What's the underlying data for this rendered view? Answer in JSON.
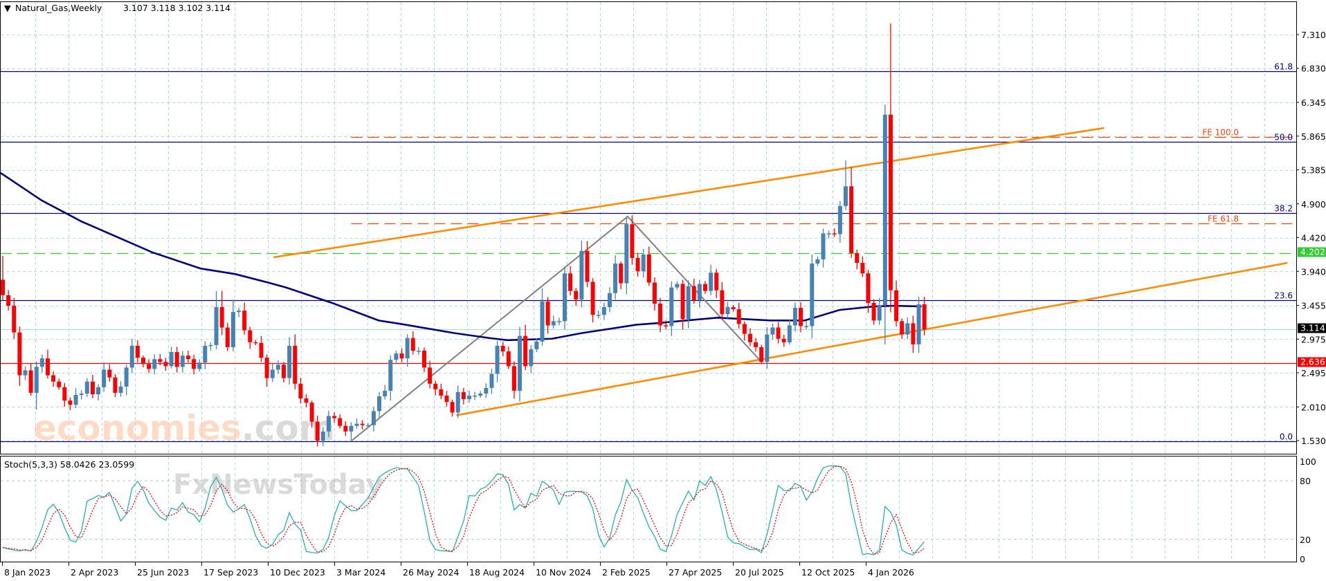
{
  "header": {
    "arrow": "▼",
    "symbol": "Natural_Gas,Weekly",
    "ohlc": "3.107 3.118 3.102 3.114"
  },
  "stoch_label": "Stoch(5,3,3) 58.0426 23.0599",
  "watermark": {
    "brand": "economies",
    "suffix": ".com",
    "sub": "FxNewsToday"
  },
  "colors": {
    "bull": "#4682b4",
    "bear": "#ff0000",
    "ma": "#000080",
    "fib": "#000080",
    "fe": "#ff4500",
    "trend": "#ff8c00",
    "zigzag": "#808080",
    "grid": "#b0dce0",
    "support_green": "#32cd32",
    "support_red": "#ff0000",
    "price_line": "#a8dce0",
    "stoch_main": "#20b2aa",
    "stoch_signal": "#ff0000"
  },
  "chart_data": {
    "type": "candlestick",
    "title": "Natural_Gas,Weekly",
    "y_ticks": [
      "7.310",
      "6.830",
      "6.345",
      "5.865",
      "5.385",
      "4.900",
      "4.420",
      "3.940",
      "3.455",
      "2.975",
      "2.495",
      "2.010",
      "1.530"
    ],
    "ylim": [
      1.53,
      7.31
    ],
    "x_labels": [
      "8 Jan 2023",
      "2 Apr 2023",
      "25 Jun 2023",
      "17 Sep 2023",
      "10 Dec 2023",
      "3 Mar 2024",
      "26 May 2024",
      "18 Aug 2024",
      "10 Nov 2024",
      "2 Feb 2025",
      "27 Apr 2025",
      "20 Jul 2025",
      "12 Oct 2025",
      "4 Jan 2026"
    ],
    "x_label_step_weeks": 12,
    "candles": {
      "first_open": 3.82,
      "close": [
        3.6,
        3.45,
        3.07,
        2.46,
        2.53,
        2.21,
        2.58,
        2.7,
        2.46,
        2.37,
        2.29,
        2.1,
        2.04,
        2.18,
        2.2,
        2.37,
        2.19,
        2.29,
        2.54,
        2.43,
        2.21,
        2.3,
        2.57,
        2.88,
        2.71,
        2.62,
        2.55,
        2.69,
        2.65,
        2.59,
        2.79,
        2.58,
        2.74,
        2.69,
        2.55,
        2.64,
        2.88,
        2.89,
        3.43,
        3.14,
        2.86,
        3.36,
        3.38,
        3.1,
        2.93,
        2.92,
        2.71,
        2.42,
        2.54,
        2.61,
        2.42,
        2.88,
        2.34,
        2.13,
        2.07,
        1.8,
        1.53,
        1.66,
        1.88,
        1.85,
        1.74,
        1.66,
        1.74,
        1.77,
        1.75,
        1.75,
        1.95,
        2.16,
        2.24,
        2.68,
        2.77,
        2.7,
        2.99,
        2.81,
        2.81,
        2.57,
        2.34,
        2.26,
        2.17,
        2.08,
        1.93,
        2.22,
        2.12,
        2.17,
        2.17,
        2.2,
        2.28,
        2.48,
        2.88,
        2.8,
        2.59,
        2.24,
        3.02,
        2.59,
        2.83,
        2.94,
        3.51,
        3.17,
        3.23,
        3.23,
        3.91,
        3.66,
        3.54,
        4.23,
        3.79,
        3.32,
        3.32,
        3.43,
        3.63,
        4.05,
        3.77,
        4.61,
        4.13,
        3.94,
        4.18,
        3.78,
        3.48,
        3.17,
        3.16,
        3.71,
        3.76,
        3.26,
        3.73,
        3.53,
        3.76,
        3.66,
        3.92,
        3.67,
        3.33,
        3.43,
        3.4,
        3.19,
        3.05,
        2.93,
        2.86,
        2.65,
        3.04,
        3.14,
        2.98,
        2.93,
        3.17,
        3.42,
        3.16,
        3.16,
        4.05,
        4.11,
        4.48,
        4.48,
        4.47,
        4.87,
        5.15,
        4.2,
        4.06,
        3.91,
        3.49,
        3.24,
        3.46,
        6.17,
        3.67,
        3.23,
        3.04,
        3.2,
        2.9,
        3.47,
        3.114
      ],
      "high_override": {
        "0": 4.16,
        "38": 3.66,
        "39": 3.66,
        "111": 4.72,
        "150": 5.52,
        "157": 6.31,
        "158": 7.47
      },
      "low_override": {
        "6": 1.97,
        "62": 1.53,
        "162": 2.78,
        "135": 2.63
      }
    },
    "moving_average": [
      [
        -0.5,
        5.34
      ],
      [
        6.9,
        4.95
      ],
      [
        14,
        4.65
      ],
      [
        26.6,
        4.21
      ],
      [
        35.2,
        3.98
      ],
      [
        41.4,
        3.9
      ],
      [
        47.2,
        3.78
      ],
      [
        50.4,
        3.71
      ],
      [
        58.6,
        3.49
      ],
      [
        66.9,
        3.24
      ],
      [
        70.9,
        3.19
      ],
      [
        80.4,
        3.06
      ],
      [
        86.6,
        2.99
      ],
      [
        89.8,
        2.96
      ],
      [
        97.7,
        2.98
      ],
      [
        103,
        3.06
      ],
      [
        112.8,
        3.18
      ],
      [
        116.1,
        3.2
      ],
      [
        127.2,
        3.28
      ],
      [
        136.6,
        3.24
      ],
      [
        142.7,
        3.24
      ],
      [
        148.9,
        3.39
      ],
      [
        155,
        3.44
      ],
      [
        158.7,
        3.45
      ],
      [
        163.5,
        3.44
      ]
    ],
    "fibonacci": [
      {
        "label": "61.8",
        "price": 6.79
      },
      {
        "label": "50.0",
        "price": 5.78
      },
      {
        "label": "38.2",
        "price": 4.77
      },
      {
        "label": "23.6",
        "price": 3.53
      },
      {
        "label": "0.0",
        "price": 1.52
      }
    ],
    "fib_expansion": [
      {
        "label": "FE 100.0",
        "price": 5.85,
        "start_index": 62
      },
      {
        "label": "FE 61.8",
        "price": 4.62,
        "start_index": 62
      }
    ],
    "levels": [
      {
        "label": "4.202",
        "price": 4.202,
        "style": "dashed-green"
      },
      {
        "label": "3.114",
        "price": 3.114,
        "style": "current"
      },
      {
        "label": "2.636",
        "price": 2.636,
        "style": "solid-red"
      }
    ],
    "trendlines": [
      {
        "name": "upper-channel",
        "points": [
          [
            48.2,
            4.14
          ],
          [
            196,
            5.98
          ]
        ]
      },
      {
        "name": "lower-channel",
        "points": [
          [
            80.7,
            1.89
          ],
          [
            228.6,
            4.06
          ]
        ]
      }
    ],
    "zigzag": [
      [
        62.1,
        1.53
      ],
      [
        111.2,
        4.72
      ],
      [
        134.9,
        2.66
      ]
    ],
    "stochastic": {
      "k": 5,
      "d": 3,
      "slowing": 3,
      "levels": [
        80,
        20
      ],
      "y_ticks": [
        "100",
        "80",
        "20",
        "0"
      ]
    }
  }
}
